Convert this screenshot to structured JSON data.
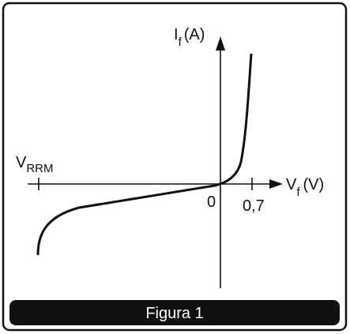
{
  "y_axis_label": {
    "main": "I",
    "subscript": "f",
    "unit": "(A)"
  },
  "x_axis_label": {
    "main": "V",
    "subscript": "f",
    "unit": "(V)"
  },
  "reverse_label": {
    "main": "V",
    "subscript": "RRM"
  },
  "origin_label": "0",
  "tick_label": "0,7",
  "caption": "Figura 1"
}
